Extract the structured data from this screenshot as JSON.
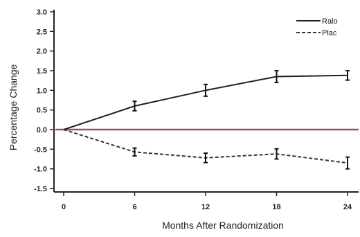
{
  "chart_data": {
    "type": "line",
    "title": "",
    "xlabel": "Months After Randomization",
    "ylabel": "Percentage Change",
    "x": [
      0,
      6,
      12,
      18,
      24
    ],
    "xticks": [
      "0",
      "6",
      "12",
      "18",
      "24"
    ],
    "yticks": [
      "3.0",
      "2.5",
      "2.0",
      "1.5",
      "1.0",
      "0.5",
      "0.0",
      "-0.5",
      "-1.0",
      "-1.5"
    ],
    "xlim": [
      0,
      24
    ],
    "ylim": [
      -1.5,
      3.0
    ],
    "grid": false,
    "legend_position": "top-right",
    "series": [
      {
        "name": "Ralo",
        "style": "solid",
        "color": "#222222",
        "values": [
          0.0,
          0.6,
          1.0,
          1.35,
          1.38
        ],
        "errors": [
          0.0,
          0.12,
          0.15,
          0.15,
          0.12
        ]
      },
      {
        "name": "Plac",
        "style": "dashed",
        "color": "#333333",
        "values": [
          0.0,
          -0.57,
          -0.72,
          -0.62,
          -0.85
        ],
        "errors": [
          0.0,
          0.1,
          0.12,
          0.13,
          0.15
        ]
      }
    ],
    "reference_line": {
      "y": 0.0,
      "color": "#8a5a5a"
    }
  }
}
